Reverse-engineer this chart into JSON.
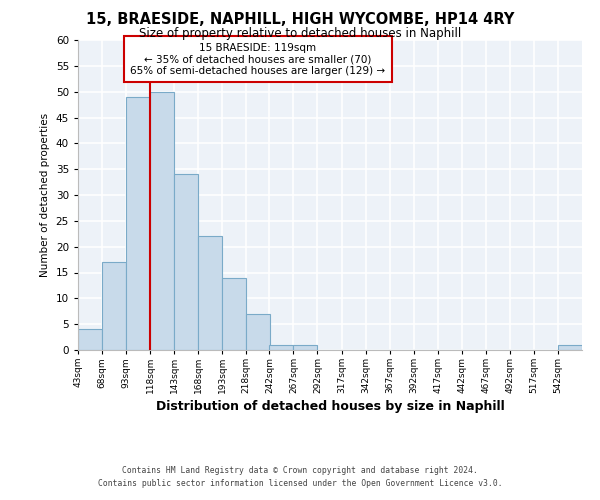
{
  "title_line1": "15, BRAESIDE, NAPHILL, HIGH WYCOMBE, HP14 4RY",
  "title_line2": "Size of property relative to detached houses in Naphill",
  "xlabel": "Distribution of detached houses by size in Naphill",
  "ylabel": "Number of detached properties",
  "bar_color": "#c8daea",
  "bar_edge_color": "#7aaac8",
  "bin_labels": [
    "43sqm",
    "68sqm",
    "93sqm",
    "118sqm",
    "143sqm",
    "168sqm",
    "193sqm",
    "218sqm",
    "242sqm",
    "267sqm",
    "292sqm",
    "317sqm",
    "342sqm",
    "367sqm",
    "392sqm",
    "417sqm",
    "442sqm",
    "467sqm",
    "492sqm",
    "517sqm",
    "542sqm"
  ],
  "bin_edges": [
    43,
    68,
    93,
    118,
    143,
    168,
    193,
    218,
    242,
    267,
    292,
    317,
    342,
    367,
    392,
    417,
    442,
    467,
    492,
    517,
    542
  ],
  "bin_width": 25,
  "bar_heights": [
    4,
    17,
    49,
    50,
    34,
    22,
    14,
    7,
    1,
    1,
    0,
    0,
    0,
    0,
    0,
    0,
    0,
    0,
    0,
    0,
    1
  ],
  "red_line_x": 118,
  "annotation_line1": "15 BRAESIDE: 119sqm",
  "annotation_line2": "← 35% of detached houses are smaller (70)",
  "annotation_line3": "65% of semi-detached houses are larger (129) →",
  "ylim": [
    0,
    60
  ],
  "yticks": [
    0,
    5,
    10,
    15,
    20,
    25,
    30,
    35,
    40,
    45,
    50,
    55,
    60
  ],
  "background_color": "#edf2f8",
  "grid_color": "#ffffff",
  "footer_line1": "Contains HM Land Registry data © Crown copyright and database right 2024.",
  "footer_line2": "Contains public sector information licensed under the Open Government Licence v3.0."
}
